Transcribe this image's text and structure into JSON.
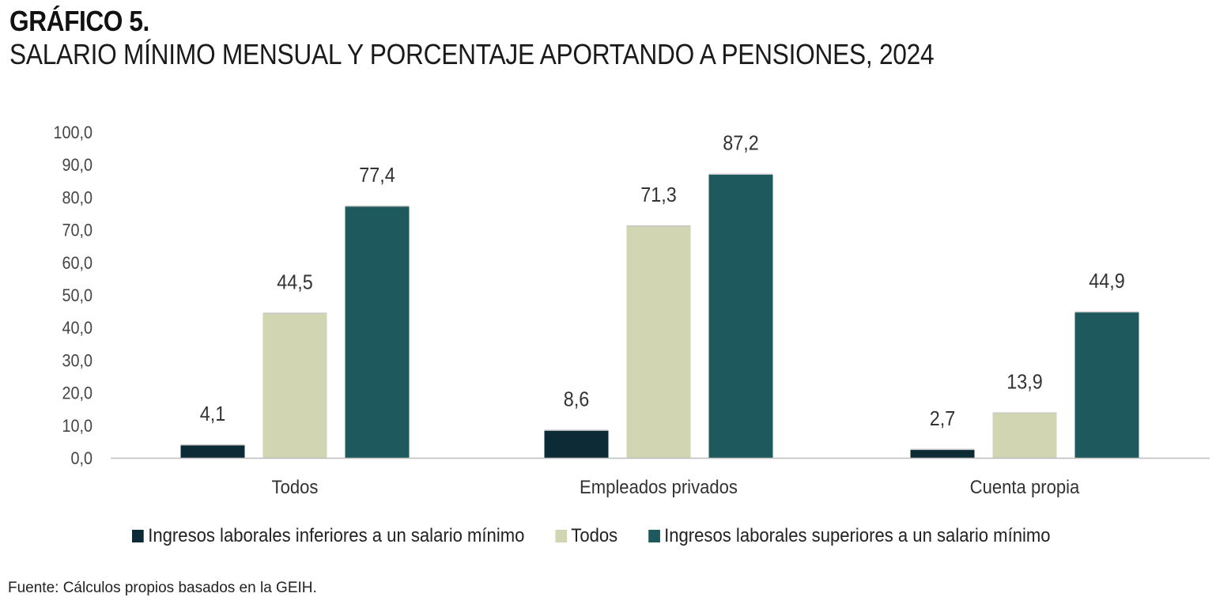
{
  "heading": {
    "title": "GRÁFICO 5.",
    "subtitle": "SALARIO MÍNIMO MENSUAL Y PORCENTAJE APORTANDO A PENSIONES, 2024"
  },
  "source": "Fuente: Cálculos propios basados en la GEIH.",
  "chart_data": {
    "type": "bar",
    "title": "SALARIO MÍNIMO MENSUAL Y PORCENTAJE APORTANDO A PENSIONES, 2024",
    "xlabel": "",
    "ylabel": "",
    "categories": [
      "Todos",
      "Empleados privados",
      "Cuenta propia"
    ],
    "series": [
      {
        "name": "Ingresos laborales inferiores a un salario mínimo",
        "values": [
          4.1,
          8.6,
          2.7
        ],
        "labels": [
          "4,1",
          "8,6",
          "2,7"
        ],
        "color": "#0d2b36"
      },
      {
        "name": "Todos",
        "values": [
          44.5,
          71.3,
          13.9
        ],
        "labels": [
          "44,5",
          "71,3",
          "13,9"
        ],
        "color": "#d1d5b2"
      },
      {
        "name": "Ingresos laborales superiores a un salario mínimo",
        "values": [
          77.4,
          87.2,
          44.9
        ],
        "labels": [
          "77,4",
          "87,2",
          "44,9"
        ],
        "color": "#1e5a5d"
      }
    ],
    "ylim": [
      0,
      100
    ],
    "y_ticks": [
      "0,0",
      "10,0",
      "20,0",
      "30,0",
      "40,0",
      "50,0",
      "60,0",
      "70,0",
      "80,0",
      "90,0",
      "100,0"
    ],
    "grid": false,
    "legend_position": "bottom"
  }
}
